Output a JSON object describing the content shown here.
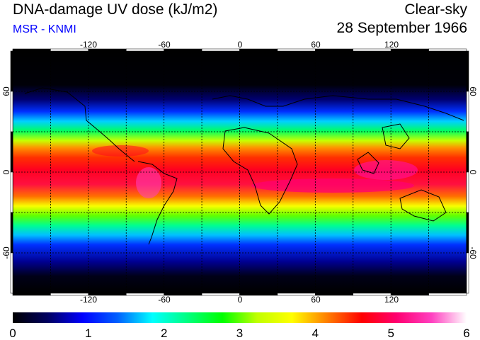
{
  "header": {
    "title": "DNA-damage UV dose (kJ/m2)",
    "credit": "MSR - KNMI",
    "sky_condition": "Clear-sky",
    "date": "28 September 1966"
  },
  "map": {
    "longitude_ticks": [
      "-120",
      "-60",
      "0",
      "60",
      "120"
    ],
    "latitude_ticks": [
      "60",
      "0",
      "-60"
    ],
    "longitude_range": [
      -180,
      180
    ],
    "latitude_range": [
      -90,
      90
    ],
    "gridline_spacing_deg": 30
  },
  "colorbar": {
    "labels": [
      "0",
      "1",
      "2",
      "3",
      "4",
      "5",
      "6"
    ],
    "range": [
      0,
      6
    ],
    "colors": [
      "#000000",
      "#000060",
      "#0000ff",
      "#0060ff",
      "#00ffff",
      "#00ff80",
      "#00ff00",
      "#c0ff00",
      "#ffff00",
      "#ff8000",
      "#ff0000",
      "#ff0070",
      "#ff40c0",
      "#ffffff"
    ]
  }
}
